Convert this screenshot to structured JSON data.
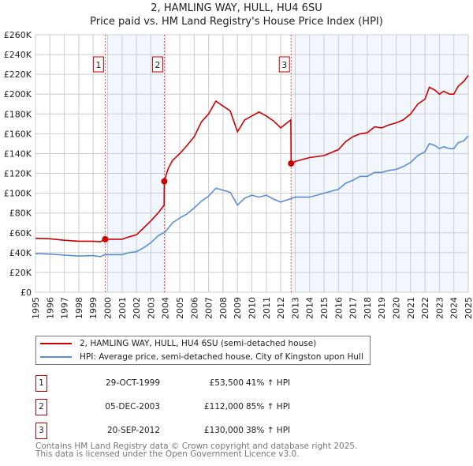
{
  "chart_data": {
    "type": "line",
    "title": "2, HAMLING WAY, HULL, HU4 6SU",
    "subtitle": "Price paid vs. HM Land Registry's House Price Index (HPI)",
    "xlim": [
      1995,
      2025
    ],
    "ylim": [
      0,
      260000
    ],
    "grid": true,
    "x_ticks": [
      "1995",
      "1996",
      "1997",
      "1998",
      "1999",
      "2000",
      "2001",
      "2002",
      "2003",
      "2004",
      "2005",
      "2006",
      "2007",
      "2008",
      "2009",
      "2010",
      "2011",
      "2012",
      "2013",
      "2014",
      "2015",
      "2016",
      "2017",
      "2018",
      "2019",
      "2020",
      "2021",
      "2022",
      "2023",
      "2024",
      "2025"
    ],
    "y_ticks": [
      "£0",
      "£20K",
      "£40K",
      "£60K",
      "£80K",
      "£100K",
      "£120K",
      "£140K",
      "£160K",
      "£180K",
      "£200K",
      "£220K",
      "£240K",
      "£260K"
    ],
    "legend_position": "below",
    "series": [
      {
        "name": "2, HAMLING WAY, HULL, HU4 6SU (semi-detached house)",
        "color": "#cc0000",
        "x": [
          1995,
          1996,
          1997,
          1998,
          1999,
          1999.5,
          1999.83,
          2000,
          2001,
          2001.5,
          2002,
          2002.5,
          2003,
          2003.5,
          2003.92,
          2003.93,
          2004.2,
          2004.5,
          2005,
          2005.5,
          2006,
          2006.5,
          2007,
          2007.5,
          2008,
          2008.5,
          2009,
          2009.5,
          2010,
          2010.5,
          2011,
          2011.5,
          2012,
          2012.7,
          2012.72,
          2013,
          2014,
          2015,
          2016,
          2016.5,
          2017,
          2017.5,
          2018,
          2018.5,
          2019,
          2019.5,
          2020,
          2020.5,
          2021,
          2021.5,
          2022,
          2022.3,
          2022.7,
          2023,
          2023.3,
          2023.7,
          2024,
          2024.3,
          2024.7,
          2025
        ],
        "y": [
          54500,
          54000,
          52500,
          51500,
          51500,
          51000,
          53500,
          53500,
          53500,
          56000,
          58000,
          65000,
          72000,
          80000,
          88000,
          112000,
          125000,
          133000,
          140000,
          148000,
          157000,
          172000,
          180000,
          193000,
          188000,
          183000,
          162000,
          174000,
          178000,
          182000,
          178000,
          173000,
          166000,
          174000,
          130000,
          132000,
          136000,
          138000,
          144000,
          152000,
          157000,
          160000,
          161000,
          167000,
          166000,
          169000,
          171000,
          174000,
          180000,
          190000,
          195000,
          207000,
          204000,
          200000,
          203000,
          200000,
          200000,
          208000,
          213000,
          219000
        ]
      },
      {
        "name": "HPI: Average price, semi-detached house, City of Kingston upon Hull",
        "color": "#5b8fd4",
        "x": [
          1995,
          1996,
          1997,
          1998,
          1999,
          1999.5,
          1999.83,
          2000,
          2001,
          2001.5,
          2002,
          2002.5,
          2003,
          2003.5,
          2004,
          2004.5,
          2005,
          2005.5,
          2006,
          2006.5,
          2007,
          2007.5,
          2008,
          2008.5,
          2009,
          2009.5,
          2010,
          2010.5,
          2011,
          2011.5,
          2012,
          2012.7,
          2013,
          2014,
          2015,
          2016,
          2016.5,
          2017,
          2017.5,
          2018,
          2018.5,
          2019,
          2019.5,
          2020,
          2020.5,
          2021,
          2021.5,
          2022,
          2022.3,
          2022.7,
          2023,
          2023.3,
          2023.7,
          2024,
          2024.3,
          2024.7,
          2025
        ],
        "y": [
          39000,
          38500,
          37500,
          36500,
          37000,
          36000,
          38000,
          38000,
          38000,
          40000,
          41000,
          45000,
          50000,
          57000,
          61000,
          70000,
          75000,
          79000,
          85000,
          92000,
          97000,
          105000,
          103000,
          101000,
          88000,
          95000,
          98000,
          96000,
          98000,
          94000,
          91000,
          94500,
          96000,
          96000,
          100000,
          104000,
          110000,
          113000,
          117000,
          117000,
          121000,
          121000,
          123000,
          124000,
          127000,
          131000,
          138000,
          142000,
          150000,
          148000,
          145000,
          147000,
          145000,
          145000,
          151000,
          153000,
          158000
        ]
      }
    ],
    "sales": [
      {
        "label": "1",
        "x": 1999.83,
        "y": 53500
      },
      {
        "label": "2",
        "x": 2003.93,
        "y": 112000
      },
      {
        "label": "3",
        "x": 2012.72,
        "y": 130000
      }
    ]
  },
  "transactions": [
    {
      "num": "1",
      "date": "29-OCT-1999",
      "price": "£53,500",
      "hpi": "41% ↑ HPI"
    },
    {
      "num": "2",
      "date": "05-DEC-2003",
      "price": "£112,000",
      "hpi": "85% ↑ HPI"
    },
    {
      "num": "3",
      "date": "20-SEP-2012",
      "price": "£130,000",
      "hpi": "38% ↑ HPI"
    }
  ],
  "footer": {
    "line1": "Contains HM Land Registry data © Crown copyright and database right 2025.",
    "line2": "This data is licensed under the Open Government Licence v3.0."
  }
}
